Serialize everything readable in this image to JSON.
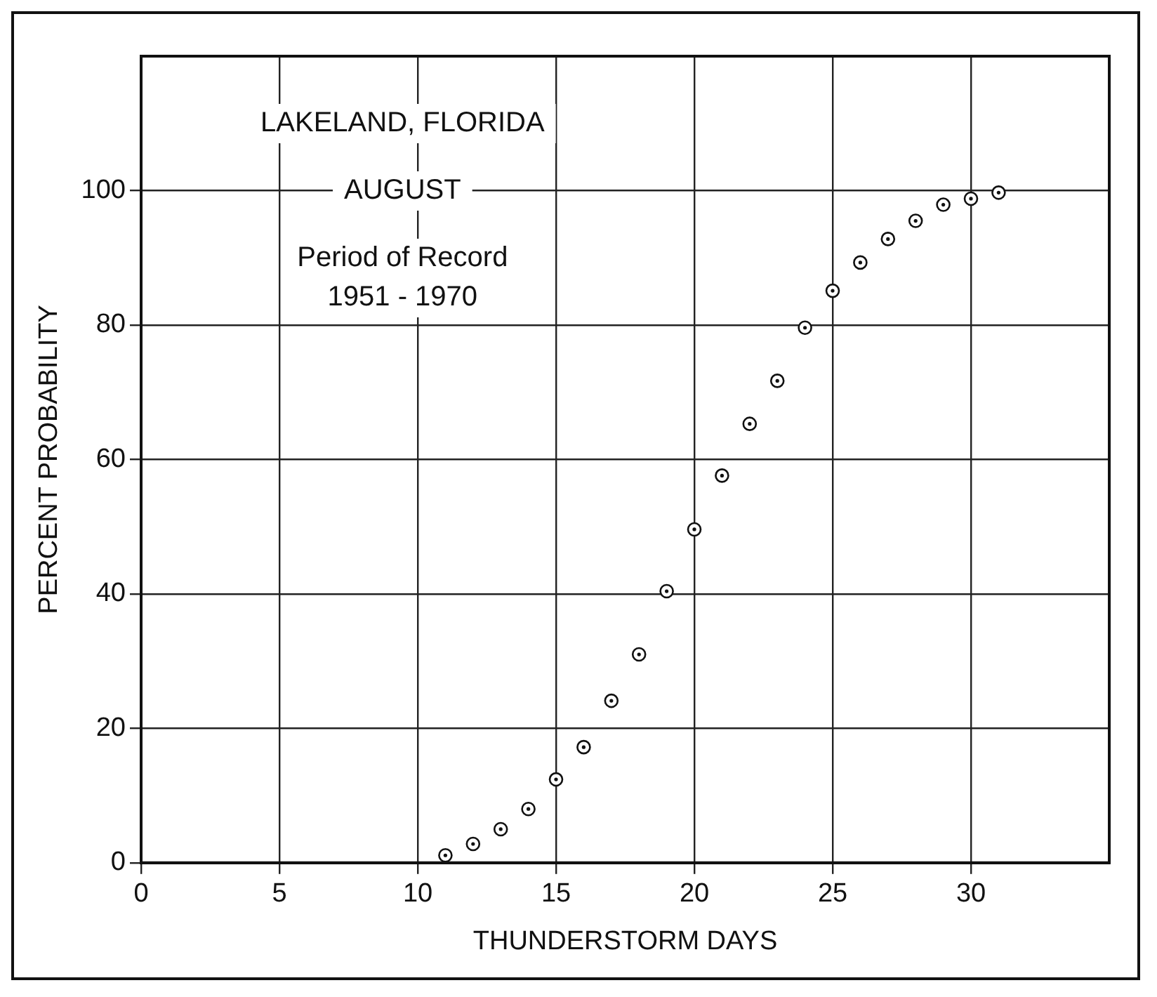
{
  "chart_data": {
    "type": "scatter",
    "title": "LAKELAND, FLORIDA",
    "subtitle": "AUGUST",
    "annotations": [
      "Period of Record\n1951 - 1970"
    ],
    "xlabel": "THUNDERSTORM DAYS",
    "ylabel": "PERCENT PROBABILITY",
    "x": [
      11,
      12,
      13,
      14,
      15,
      16,
      17,
      18,
      19,
      20,
      21,
      22,
      23,
      24,
      25,
      26,
      27,
      28,
      29,
      30,
      31
    ],
    "values": [
      1.1,
      2.8,
      5.0,
      8.0,
      12.4,
      17.2,
      24.1,
      31.0,
      40.4,
      49.6,
      57.6,
      65.3,
      71.7,
      79.6,
      85.1,
      89.3,
      92.8,
      95.5,
      97.9,
      98.8,
      99.7
    ],
    "color": "#111111",
    "marker": "circle",
    "xlim": [
      0,
      35
    ],
    "xticks": [
      0,
      5,
      10,
      15,
      20,
      25,
      30
    ],
    "ylim": [
      0,
      120
    ],
    "yticks": [
      0,
      20,
      40,
      60,
      80,
      100
    ],
    "grid": true,
    "legend": false
  }
}
